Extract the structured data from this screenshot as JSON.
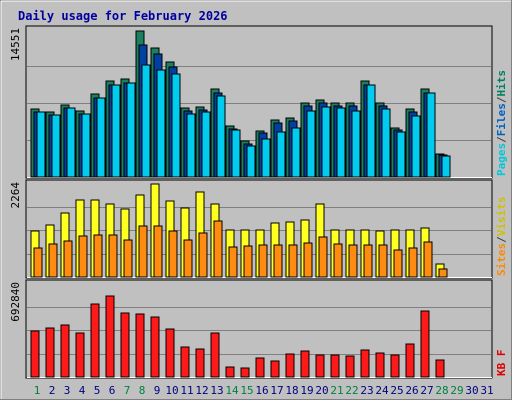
{
  "chart_data": {
    "type": "bar",
    "title": "Daily usage for February 2026",
    "categories": [
      "1",
      "2",
      "3",
      "4",
      "5",
      "6",
      "7",
      "8",
      "9",
      "10",
      "11",
      "12",
      "13",
      "14",
      "15",
      "16",
      "17",
      "18",
      "19",
      "20",
      "21",
      "22",
      "23",
      "24",
      "25",
      "26",
      "27",
      "28",
      "29",
      "30",
      "31"
    ],
    "weekend_days": [
      "1",
      "7",
      "8",
      "14",
      "15",
      "21",
      "22",
      "28",
      "29"
    ],
    "panels": [
      {
        "name": "hits-files-pages",
        "max_label": "14551",
        "ymax": 14551,
        "right_labels": [
          {
            "text": "Pages",
            "color": "#00c8d8"
          },
          {
            "text": "/",
            "color": "#404040"
          },
          {
            "text": "Files",
            "color": "#0060c0"
          },
          {
            "text": "/",
            "color": "#404040"
          },
          {
            "text": "Hits",
            "color": "#008060"
          }
        ],
        "series": [
          {
            "name": "Hits",
            "color": "#1a8060",
            "values": [
              6700,
              6400,
              7100,
              6500,
              8200,
              9400,
              9600,
              14400,
              12700,
              11300,
              6800,
              6900,
              8700,
              5000,
              3500,
              4500,
              5600,
              5800,
              7300,
              7600,
              7300,
              7300,
              9400,
              7300,
              4800,
              6700,
              8700,
              2300,
              0,
              0,
              0
            ]
          },
          {
            "name": "Files",
            "color": "#0040a0",
            "values": [
              6400,
              6100,
              6800,
              6200,
              7800,
              9000,
              9200,
              13000,
              12100,
              10800,
              6500,
              6600,
              8300,
              4700,
              3200,
              4300,
              5300,
              5500,
              7000,
              7300,
              7000,
              7000,
              9000,
              7000,
              4600,
              6400,
              8300,
              2200,
              0,
              0,
              0
            ]
          },
          {
            "name": "Pages",
            "color": "#00ccf0",
            "values": [
              6400,
              6100,
              6800,
              6200,
              7800,
              9000,
              9200,
              11000,
              10500,
              10100,
              6200,
              6400,
              8000,
              4600,
              3000,
              3700,
              4400,
              4800,
              6500,
              6900,
              6800,
              6500,
              9000,
              6700,
              4400,
              6000,
              8300,
              2100,
              0,
              0,
              0
            ]
          }
        ]
      },
      {
        "name": "visits-sites",
        "max_label": "2264",
        "ymax": 2264,
        "right_labels": [
          {
            "text": "Sites",
            "color": "#ff8800"
          },
          {
            "text": "/",
            "color": "#404040"
          },
          {
            "text": "Visits",
            "color": "#d0c000"
          }
        ],
        "series": [
          {
            "name": "Visits",
            "color": "#ffff20",
            "values": [
              1100,
              1260,
              1550,
              1860,
              1860,
              1760,
              1640,
              1980,
              2240,
              1830,
              1660,
              2050,
              1760,
              1120,
              1120,
              1130,
              1290,
              1320,
              1370,
              1760,
              1120,
              1120,
              1120,
              1100,
              1120,
              1120,
              1180,
              320,
              0,
              0,
              0
            ]
          },
          {
            "name": "Sites",
            "color": "#ff8c10",
            "values": [
              700,
              800,
              860,
              980,
              1020,
              1000,
              900,
              1240,
              1240,
              1100,
              900,
              1060,
              1340,
              720,
              740,
              770,
              760,
              780,
              810,
              960,
              790,
              780,
              760,
              770,
              660,
              710,
              850,
              200,
              0,
              0,
              0
            ]
          }
        ]
      },
      {
        "name": "kbytes",
        "max_label": "692840",
        "ymax": 692840,
        "right_labels": [
          {
            "text": "KB F",
            "color": "#e00000"
          }
        ],
        "series": [
          {
            "name": "KBytes",
            "color": "#ff1a1a",
            "values": [
              340000,
              362000,
              382000,
              325000,
              540000,
              600000,
              470000,
              468000,
              440000,
              355000,
              220000,
              210000,
              322000,
              72000,
              68000,
              138000,
              115000,
              170000,
              190000,
              160000,
              165000,
              158000,
              202000,
              178000,
              160000,
              242000,
              486000,
              127000,
              0,
              0,
              0
            ]
          }
        ]
      }
    ]
  }
}
